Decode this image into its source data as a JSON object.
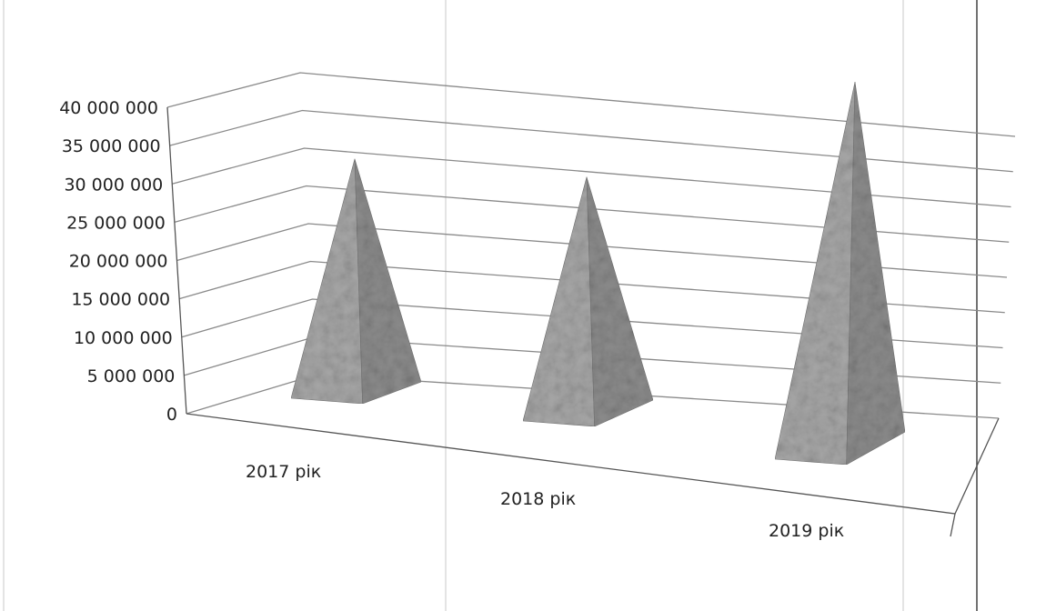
{
  "chart_data": {
    "type": "bar",
    "style": "3d-pyramid",
    "categories": [
      "2017 рік",
      "2018 рік",
      "2019 рік"
    ],
    "values": [
      28000000,
      26500000,
      36000000
    ],
    "ylim": [
      0,
      40000000
    ],
    "yticks": [
      {
        "value": 0,
        "label": "0"
      },
      {
        "value": 5000000,
        "label": "5 000 000"
      },
      {
        "value": 10000000,
        "label": "10 000 000"
      },
      {
        "value": 15000000,
        "label": "15 000 000"
      },
      {
        "value": 20000000,
        "label": "20 000 000"
      },
      {
        "value": 25000000,
        "label": "25 000 000"
      },
      {
        "value": 30000000,
        "label": "30 000 000"
      },
      {
        "value": 35000000,
        "label": "35 000 000"
      },
      {
        "value": 40000000,
        "label": "40 000 000"
      }
    ],
    "grid": true,
    "legend": "none",
    "colors": {
      "pyramid": "#a7a7a7",
      "pyramid_shade": "#8c8c8c",
      "grid": "#8a8a8a"
    }
  }
}
